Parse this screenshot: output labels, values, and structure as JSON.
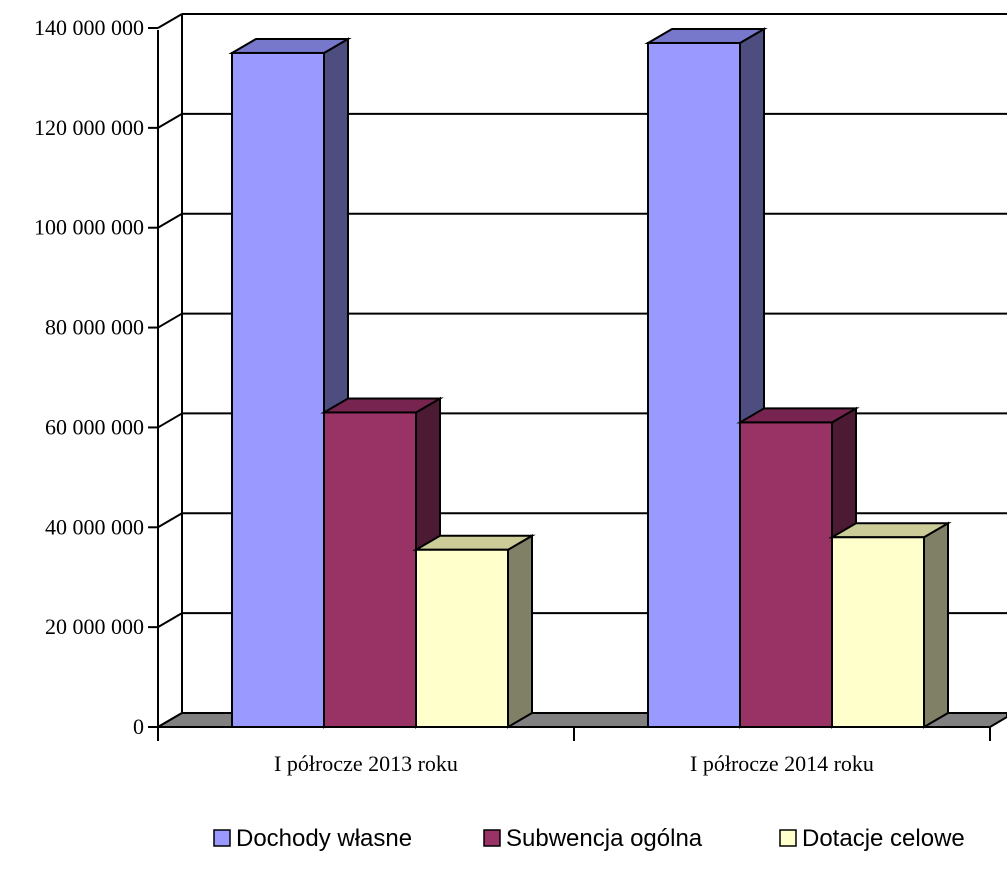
{
  "chart_data": {
    "type": "bar",
    "style": "3d-clustered",
    "categories": [
      "I półrocze 2013 roku",
      "I półrocze 2014 roku"
    ],
    "series": [
      {
        "name": "Dochody własne",
        "values": [
          135000000,
          137000000
        ]
      },
      {
        "name": "Subwencja ogólna",
        "values": [
          63000000,
          61000000
        ]
      },
      {
        "name": "Dotacje celowe",
        "values": [
          35500000,
          38000000
        ]
      }
    ],
    "ylim": [
      0,
      140000000
    ],
    "yticks": [
      0,
      20000000,
      40000000,
      60000000,
      80000000,
      100000000,
      120000000,
      140000000
    ],
    "ytick_labels": [
      "0",
      "20 000 000",
      "40 000 000",
      "60 000 000",
      "80 000 000",
      "100 000 000",
      "120 000 000",
      "140 000 000"
    ],
    "grid": true,
    "legend_position": "bottom",
    "colors": {
      "series_front": [
        "#9999ff",
        "#993366",
        "#ffffcc"
      ],
      "series_top": [
        "#7777cc",
        "#772550",
        "#cccc99"
      ],
      "series_side": [
        "#4d4d80",
        "#4d1a33",
        "#808066"
      ],
      "floor": "#808080",
      "gridline": "#000000"
    }
  }
}
